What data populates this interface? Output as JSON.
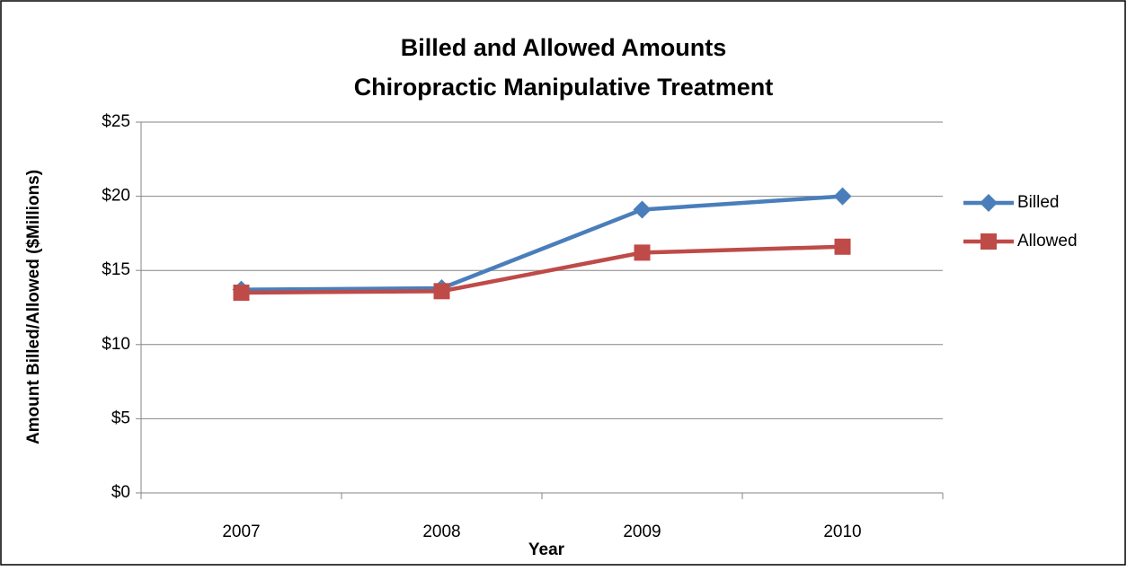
{
  "chart_data": {
    "type": "line",
    "title": "Billed and Allowed Amounts",
    "subtitle": "Chiropractic Manipulative Treatment",
    "x_label": "Year",
    "y_label": "Amount Billed/Allowed ($Millions)",
    "categories": [
      "2007",
      "2008",
      "2009",
      "2010"
    ],
    "series": [
      {
        "name": "Billed",
        "color": "#4a7ebb",
        "marker": "diamond",
        "values": [
          13.7,
          13.8,
          19.1,
          20.0
        ]
      },
      {
        "name": "Allowed",
        "color": "#be4b48",
        "marker": "square",
        "values": [
          13.5,
          13.6,
          16.2,
          16.6
        ]
      }
    ],
    "ylim": [
      0,
      25
    ],
    "yticks": [
      {
        "value": 0,
        "label": "$0"
      },
      {
        "value": 5,
        "label": "$5"
      },
      {
        "value": 10,
        "label": "$10"
      },
      {
        "value": 15,
        "label": "$15"
      },
      {
        "value": 20,
        "label": "$20"
      },
      {
        "value": 25,
        "label": "$25"
      }
    ],
    "grid": true,
    "legend": "right"
  }
}
